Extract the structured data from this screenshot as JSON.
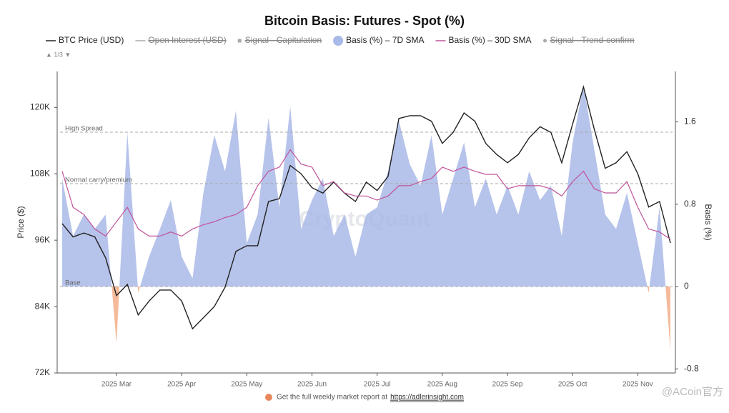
{
  "chart_data": {
    "type": "line",
    "title": "Bitcoin Basis: Futures - Spot (%)",
    "pager": "▲ 1/3 ▼",
    "watermark": "CryptoQuant",
    "corner_text": "@ACoin官方",
    "footer": {
      "text": "Get the full weekly market report at",
      "link": "https://adlerinsight.com"
    },
    "ylabel": "Price ($)",
    "y2label": "Basis (%)",
    "categories": [
      null,
      null,
      null,
      null,
      null,
      "2025 Mar",
      null,
      null,
      null,
      null,
      null,
      "2025 Apr",
      null,
      null,
      null,
      null,
      null,
      "2025 May",
      null,
      null,
      null,
      null,
      null,
      "2025 Jun",
      null,
      null,
      null,
      null,
      null,
      "2025 Jul",
      null,
      null,
      null,
      null,
      null,
      "2025 Aug",
      null,
      null,
      null,
      null,
      null,
      "2025 Sep",
      null,
      null,
      null,
      null,
      null,
      "2025 Oct",
      null,
      null,
      null,
      null,
      null,
      "2025 Nov",
      null,
      null,
      null
    ],
    "ylim": [
      72000,
      126500
    ],
    "yticks": [
      {
        "value": 72000,
        "label": "72K"
      },
      {
        "value": 84000,
        "label": "84K"
      },
      {
        "value": 96000,
        "label": "96K"
      },
      {
        "value": 108000,
        "label": "108K"
      },
      {
        "value": 120000,
        "label": "120K"
      }
    ],
    "y2lim": [
      -0.84,
      2.09
    ],
    "y2ticks": [
      -0.8,
      0,
      0.8,
      1.6
    ],
    "reference_lines": [
      {
        "label": "High Spread",
        "value": 1.5
      },
      {
        "label": "Normal carry/premium",
        "value": 1.0
      },
      {
        "label": "Base",
        "value": 0
      }
    ],
    "series": [
      {
        "name": "BTC Price (USD)",
        "color": "#222222",
        "marker": "line",
        "visible": true,
        "values": [
          99000,
          96600,
          97300,
          96600,
          92800,
          86000,
          88000,
          82500,
          85000,
          87000,
          87000,
          85000,
          80000,
          82000,
          84000,
          87500,
          94000,
          95000,
          95000,
          103000,
          103500,
          109500,
          108000,
          105500,
          104500,
          106500,
          104500,
          103000,
          106500,
          105000,
          107500,
          118000,
          118500,
          118500,
          117500,
          113500,
          115500,
          119000,
          117500,
          113500,
          111500,
          110000,
          111500,
          114500,
          116500,
          115500,
          110000,
          117000,
          123700,
          116000,
          109000,
          110000,
          112000,
          108000,
          102000,
          103000,
          95500
        ]
      },
      {
        "name": "Open Interest (USD)",
        "color": "#999999",
        "marker": "line",
        "visible": false
      },
      {
        "name": "Signal - Capitulation",
        "color": "#999999",
        "marker": "square",
        "visible": false
      },
      {
        "name": "Basis (%) – 7D SMA",
        "color": "#a9b9e8",
        "negative_color": "#f4b28f",
        "marker": "circle",
        "visible": true,
        "axis": "y2",
        "style": "area",
        "values": [
          1.05,
          0.49,
          0.7,
          0.56,
          0.7,
          -0.55,
          1.5,
          -0.06,
          0.29,
          0.56,
          0.84,
          0.29,
          0.08,
          0.91,
          1.47,
          1.12,
          1.71,
          0.42,
          0.7,
          1.64,
          0.77,
          1.75,
          0.56,
          0.84,
          1.05,
          0.49,
          0.7,
          0.29,
          0.7,
          0.77,
          1.12,
          1.61,
          1.19,
          0.98,
          1.47,
          0.7,
          1.05,
          1.4,
          0.77,
          1.05,
          0.7,
          0.98,
          0.7,
          1.12,
          0.84,
          0.98,
          0.49,
          1.4,
          1.96,
          1.33,
          0.7,
          0.56,
          0.91,
          0.42,
          -0.06,
          0.77,
          -0.62
        ]
      },
      {
        "name": "Basis (%) – 30D SMA",
        "color": "#c0549b",
        "marker": "line",
        "visible": true,
        "axis": "y2",
        "values": [
          1.12,
          0.77,
          0.7,
          0.56,
          0.49,
          0.63,
          0.77,
          0.56,
          0.49,
          0.49,
          0.53,
          0.49,
          0.56,
          0.6,
          0.63,
          0.67,
          0.7,
          0.77,
          0.98,
          1.12,
          1.16,
          1.33,
          1.19,
          1.16,
          0.98,
          1.02,
          0.91,
          0.88,
          0.88,
          0.84,
          0.88,
          0.98,
          0.98,
          1.02,
          1.05,
          1.16,
          1.12,
          1.16,
          1.12,
          1.09,
          1.09,
          0.95,
          0.98,
          0.98,
          0.98,
          0.95,
          0.88,
          1.02,
          1.12,
          0.95,
          0.91,
          0.91,
          1.02,
          0.77,
          0.56,
          0.53,
          0.46
        ]
      },
      {
        "name": "Signal - Trend-confirm",
        "color": "#999999",
        "marker": "dot",
        "visible": false
      }
    ]
  }
}
